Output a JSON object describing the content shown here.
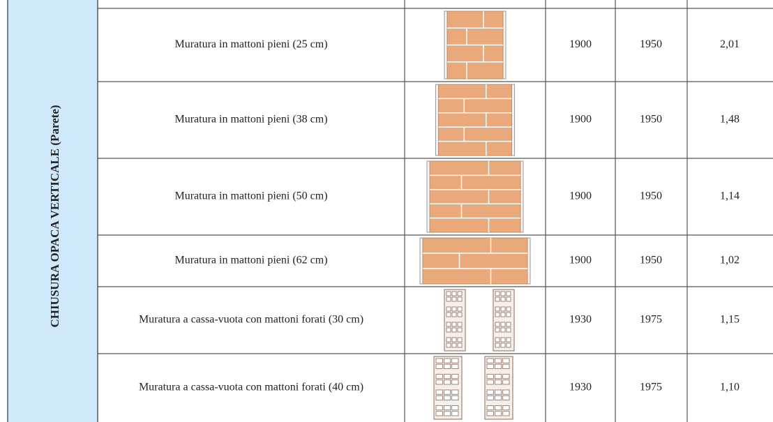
{
  "side_label": "CHIUSURA OPACA VERTICALE (Parete)",
  "rows": [
    {
      "description": "Muratura in mattoni pieni (25 cm)",
      "year_from": "1900",
      "year_to": "1950",
      "value": "2,01"
    },
    {
      "description": "Muratura in mattoni pieni (38 cm)",
      "year_from": "1900",
      "year_to": "1950",
      "value": "1,48"
    },
    {
      "description": "Muratura in mattoni pieni (50 cm)",
      "year_from": "1900",
      "year_to": "1950",
      "value": "1,14"
    },
    {
      "description": "Muratura in mattoni pieni (62 cm)",
      "year_from": "1900",
      "year_to": "1950",
      "value": "1,02"
    },
    {
      "description": "Muratura a cassa-vuota con mattoni forati (30 cm)",
      "year_from": "1930",
      "year_to": "1975",
      "value": "1,15"
    },
    {
      "description": "Muratura a cassa-vuota con mattoni forati (40 cm)",
      "year_from": "1930",
      "year_to": "1975",
      "value": "1,10"
    }
  ]
}
